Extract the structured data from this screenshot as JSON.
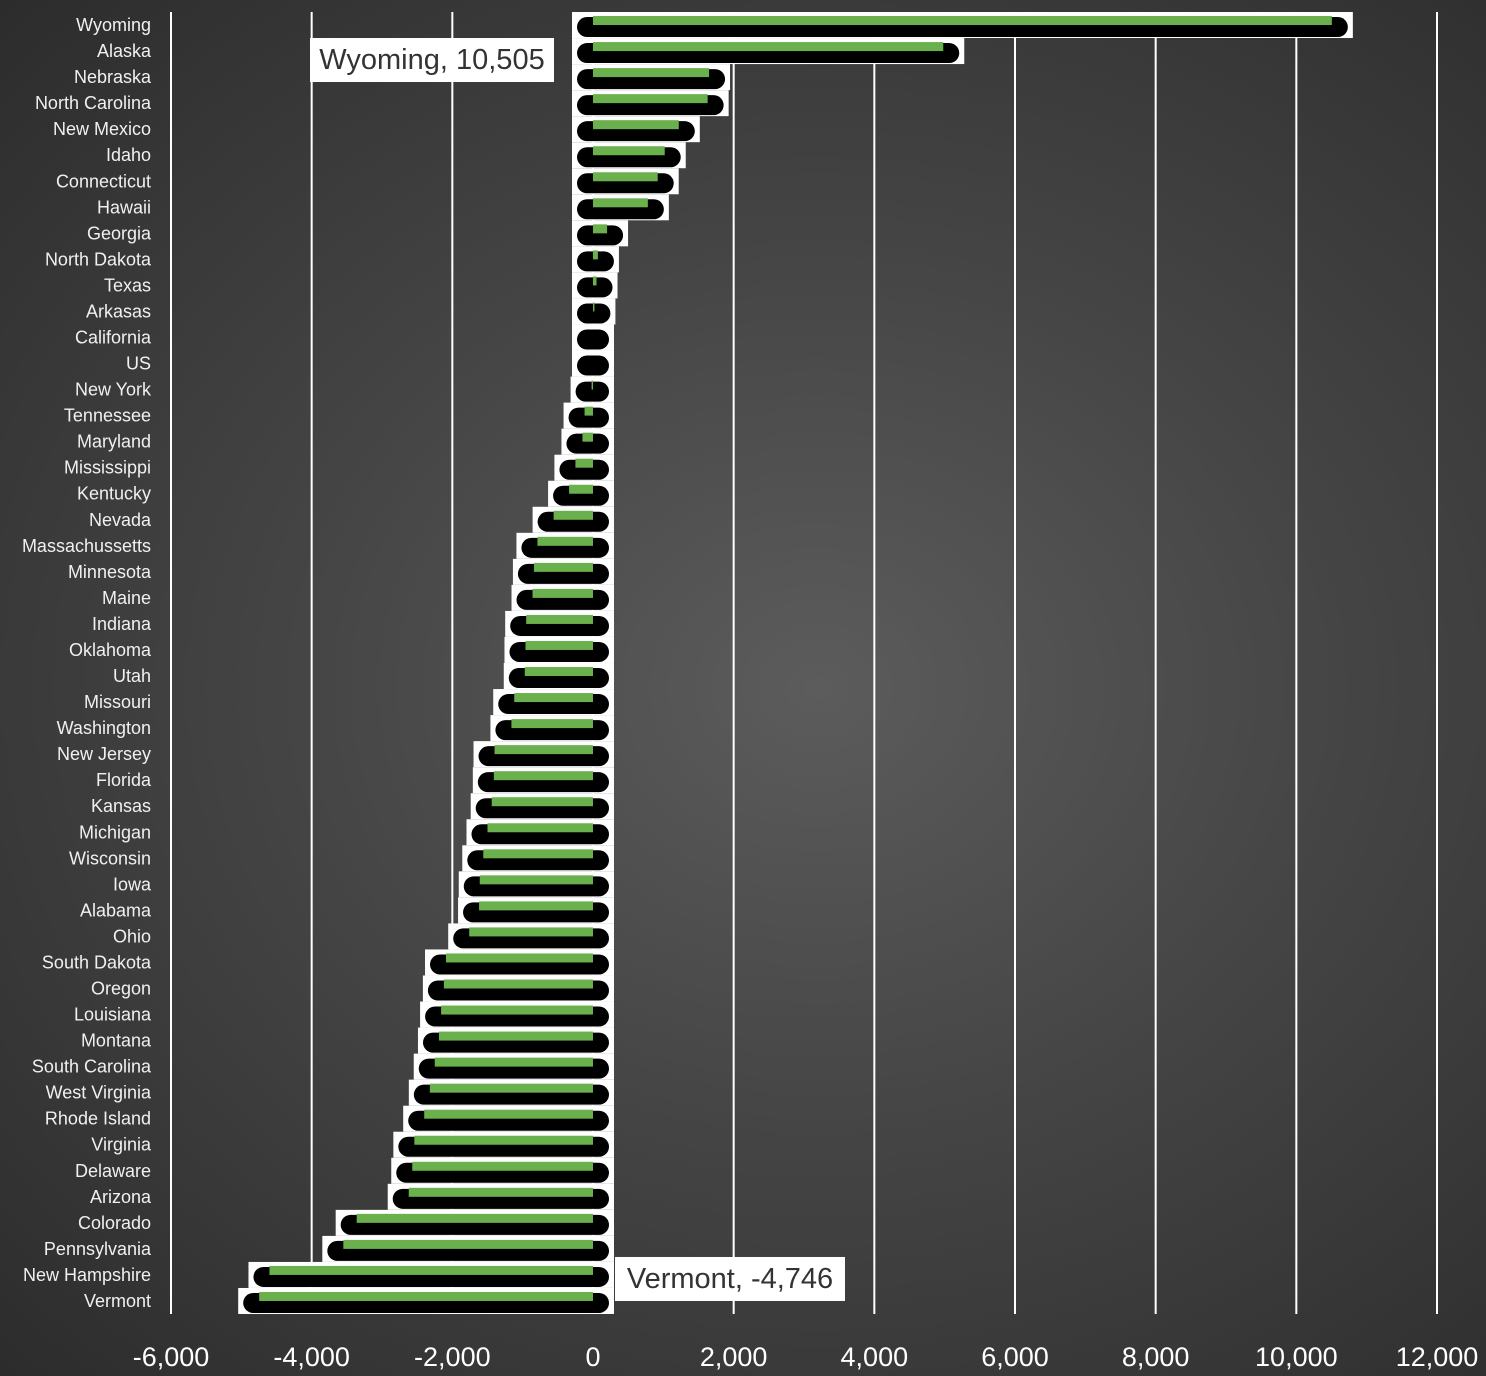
{
  "chart_data": {
    "type": "bar",
    "orientation": "horizontal",
    "title": "",
    "xlabel": "",
    "ylabel": "",
    "xlim": [
      -6000,
      12000
    ],
    "xticks": [
      -6000,
      -4000,
      -2000,
      0,
      2000,
      4000,
      6000,
      8000,
      10000,
      12000
    ],
    "xtick_labels": [
      "-6,000",
      "-4,000",
      "-2,000",
      "0",
      "2,000",
      "4,000",
      "6,000",
      "8,000",
      "10,000",
      "12,000"
    ],
    "grid": true,
    "bar_color": "#6ab04c",
    "shadow_color": "#000000",
    "outline_color": "#ffffff",
    "categories": [
      "Wyoming",
      "Alaska",
      "Nebraska",
      "North Carolina",
      "New Mexico",
      "Idaho",
      "Connecticut",
      "Hawaii",
      "Georgia",
      "North Dakota",
      "Texas",
      "Arkasas",
      "California",
      "US",
      "New York",
      "Tennessee",
      "Maryland",
      "Mississippi",
      "Kentucky",
      "Nevada",
      "Massachussetts",
      "Minnesota",
      "Maine",
      "Indiana",
      "Oklahoma",
      "Utah",
      "Missouri",
      "Washington",
      "New Jersey",
      "Florida",
      "Kansas",
      "Michigan",
      "Wisconsin",
      "Iowa",
      "Alabama",
      "Ohio",
      "South Dakota",
      "Oregon",
      "Louisiana",
      "Montana",
      "South Carolina",
      "West Virginia",
      "Rhode Island",
      "Virginia",
      "Delaware",
      "Arizona",
      "Colorado",
      "Pennsylvania",
      "New Hampshire",
      "Vermont"
    ],
    "values": [
      10505,
      4980,
      1650,
      1630,
      1220,
      1020,
      920,
      780,
      200,
      70,
      50,
      20,
      0,
      0,
      -20,
      -120,
      -150,
      -250,
      -340,
      -560,
      -790,
      -840,
      -860,
      -950,
      -960,
      -970,
      -1120,
      -1160,
      -1400,
      -1410,
      -1440,
      -1500,
      -1560,
      -1610,
      -1620,
      -1760,
      -2090,
      -2120,
      -2160,
      -2190,
      -2250,
      -2320,
      -2400,
      -2540,
      -2570,
      -2620,
      -3360,
      -3550,
      -4600,
      -4746
    ],
    "annotations": [
      {
        "category": "Wyoming",
        "text": "Wyoming, 10,505"
      },
      {
        "category": "Vermont",
        "text": "Vermont, -4,746"
      }
    ]
  }
}
